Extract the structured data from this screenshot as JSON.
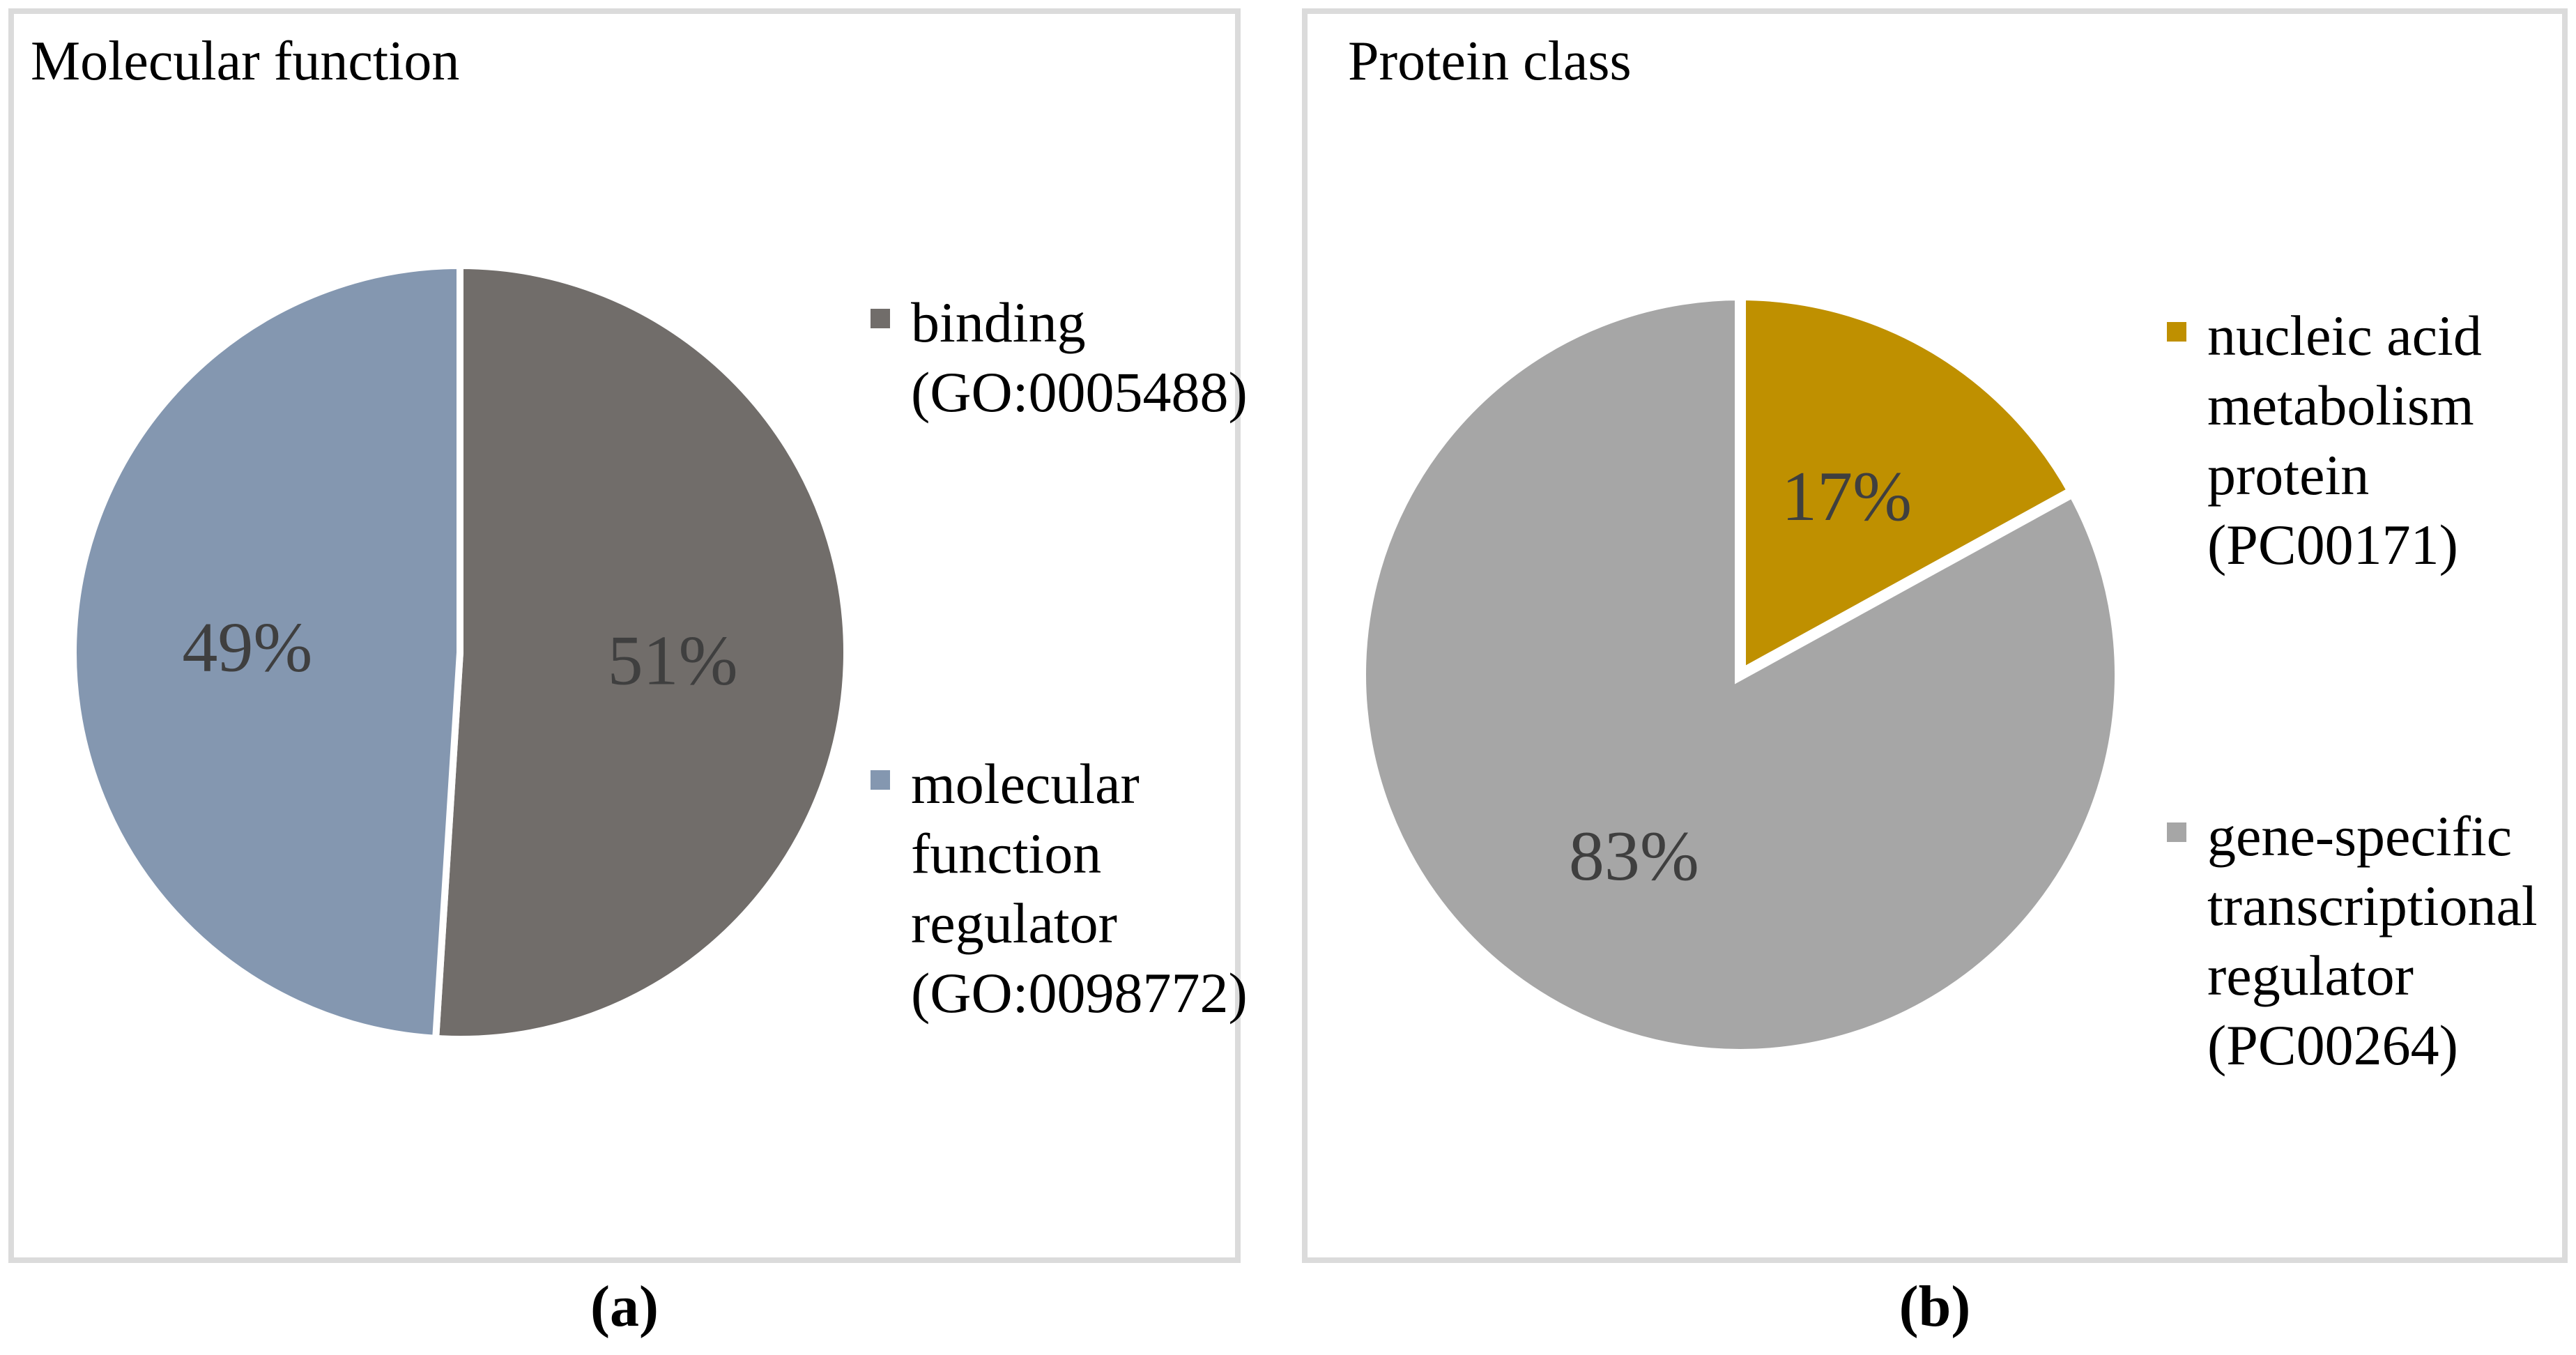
{
  "page": {
    "background": "#FFFFFF",
    "border_color": "#DBDBDB"
  },
  "panels": [
    {
      "title": "Molecular function",
      "caption": "(a)",
      "legend": [
        {
          "lines": "binding\n(GO:0005488)",
          "color": "#716D6A"
        },
        {
          "lines": "molecular\nfunction\nregulator\n(GO:0098772)",
          "color": "#8497B0"
        }
      ]
    },
    {
      "title": "Protein class",
      "caption": "(b)",
      "legend": [
        {
          "lines": "nucleic acid\nmetabolism\nprotein\n(PC00171)",
          "color": "#BF9000"
        },
        {
          "lines": "gene-specific\ntranscriptional\nregulator\n(PC00264)",
          "color": "#A6A6A6"
        }
      ]
    }
  ],
  "chart_data": [
    {
      "type": "pie",
      "title": "Molecular function",
      "start_angle_deg": 0,
      "direction": "clockwise",
      "legend_position": "right",
      "label_color": "#3F3F3F",
      "slices": [
        {
          "label": "binding (GO:0005488)",
          "value": 51,
          "display": "51%",
          "color": "#716D6A"
        },
        {
          "label": "molecular function regulator (GO:0098772)",
          "value": 49,
          "display": "49%",
          "color": "#8497B0"
        }
      ]
    },
    {
      "type": "pie",
      "title": "Protein class",
      "start_angle_deg": 0,
      "direction": "clockwise",
      "legend_position": "right",
      "label_color": "#3F3F3F",
      "slices": [
        {
          "label": "nucleic acid metabolism protein (PC00171)",
          "value": 17,
          "display": "17%",
          "color": "#BF9000"
        },
        {
          "label": "gene-specific transcriptional regulator (PC00264)",
          "value": 83,
          "display": "83%",
          "color": "#A6A6A6"
        }
      ]
    }
  ]
}
